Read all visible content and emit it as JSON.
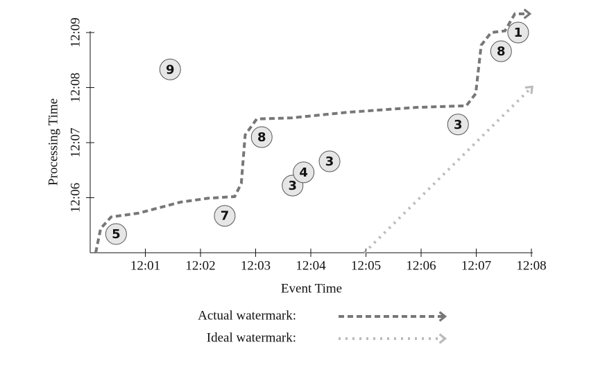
{
  "chart_data": {
    "type": "scatter",
    "xlabel": "Event Time",
    "ylabel": "Processing Time",
    "xlim": [
      0,
      8
    ],
    "ylim": [
      5,
      9
    ],
    "xticks": [
      {
        "value": 1,
        "label": "12:01"
      },
      {
        "value": 2,
        "label": "12:02"
      },
      {
        "value": 3,
        "label": "12:03"
      },
      {
        "value": 4,
        "label": "12:04"
      },
      {
        "value": 5,
        "label": "12:05"
      },
      {
        "value": 6,
        "label": "12:06"
      },
      {
        "value": 7,
        "label": "12:07"
      },
      {
        "value": 8,
        "label": "12:08"
      }
    ],
    "yticks": [
      {
        "value": 6,
        "label": "12:06"
      },
      {
        "value": 7,
        "label": "12:07"
      },
      {
        "value": 8,
        "label": "12:08"
      },
      {
        "value": 9,
        "label": "12:09"
      }
    ],
    "points": {
      "x": [
        0.47,
        1.45,
        2.44,
        3.11,
        3.67,
        3.87,
        4.34,
        6.67,
        7.45,
        7.76
      ],
      "y": [
        5.34,
        8.33,
        5.67,
        7.1,
        6.22,
        6.46,
        6.66,
        7.33,
        8.66,
        9.0
      ],
      "labels": [
        "5",
        "9",
        "7",
        "8",
        "3",
        "4",
        "3",
        "3",
        "8",
        "1"
      ],
      "color": "#e6e6e6"
    },
    "series": [
      {
        "name": "Actual watermark:",
        "color": "#777777",
        "style": "dashed",
        "x": [
          0.1,
          0.19,
          0.38,
          0.88,
          1.64,
          2.14,
          2.62,
          2.74,
          2.81,
          3.02,
          3.65,
          4.65,
          5.91,
          6.82,
          6.99,
          7.09,
          7.27,
          7.52,
          7.7,
          7.95
        ],
        "values": [
          5.0,
          5.44,
          5.65,
          5.72,
          5.92,
          5.99,
          6.02,
          6.26,
          7.14,
          7.43,
          7.45,
          7.55,
          7.64,
          7.67,
          7.89,
          8.77,
          9.0,
          9.03,
          9.34,
          9.34
        ]
      },
      {
        "name": "Ideal watermark:",
        "color": "#bbbbbb",
        "style": "dotted",
        "x": [
          4.97,
          8.0
        ],
        "values": [
          5.0,
          8.0
        ]
      }
    ]
  }
}
